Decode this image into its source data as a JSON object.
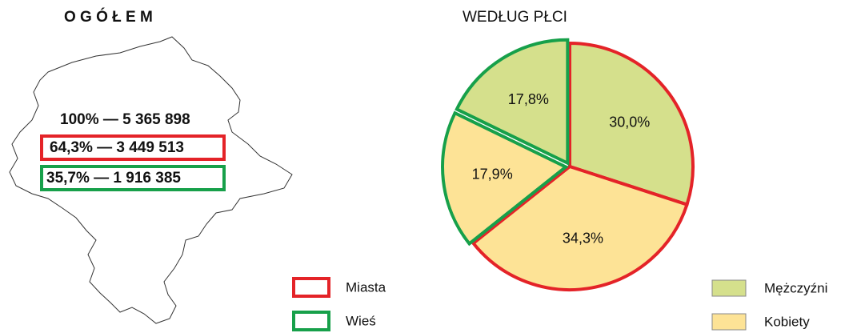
{
  "overview": {
    "title": "O G Ó Ł E M",
    "lines": [
      "100% — 5 365 898",
      "64,3% — 3 449 513",
      "35,7% — 1 916 385"
    ]
  },
  "chart_data": {
    "type": "pie",
    "title": "WEDŁUG PŁCI",
    "values": [
      30.0,
      34.3,
      17.9,
      17.8
    ],
    "value_labels": [
      "30,0%",
      "34,3%",
      "17,9%",
      "17,8%"
    ],
    "fill": [
      0,
      1,
      1,
      0
    ],
    "outline": [
      0,
      0,
      1,
      1
    ],
    "fill_legend": [
      {
        "name": "Mężczyźni",
        "color": "#d5e08c"
      },
      {
        "name": "Kobiety",
        "color": "#fde396"
      }
    ],
    "outline_legend": [
      {
        "name": "Miasta",
        "color": "#e42328"
      },
      {
        "name": "Wieś",
        "color": "#17a04a"
      }
    ]
  }
}
